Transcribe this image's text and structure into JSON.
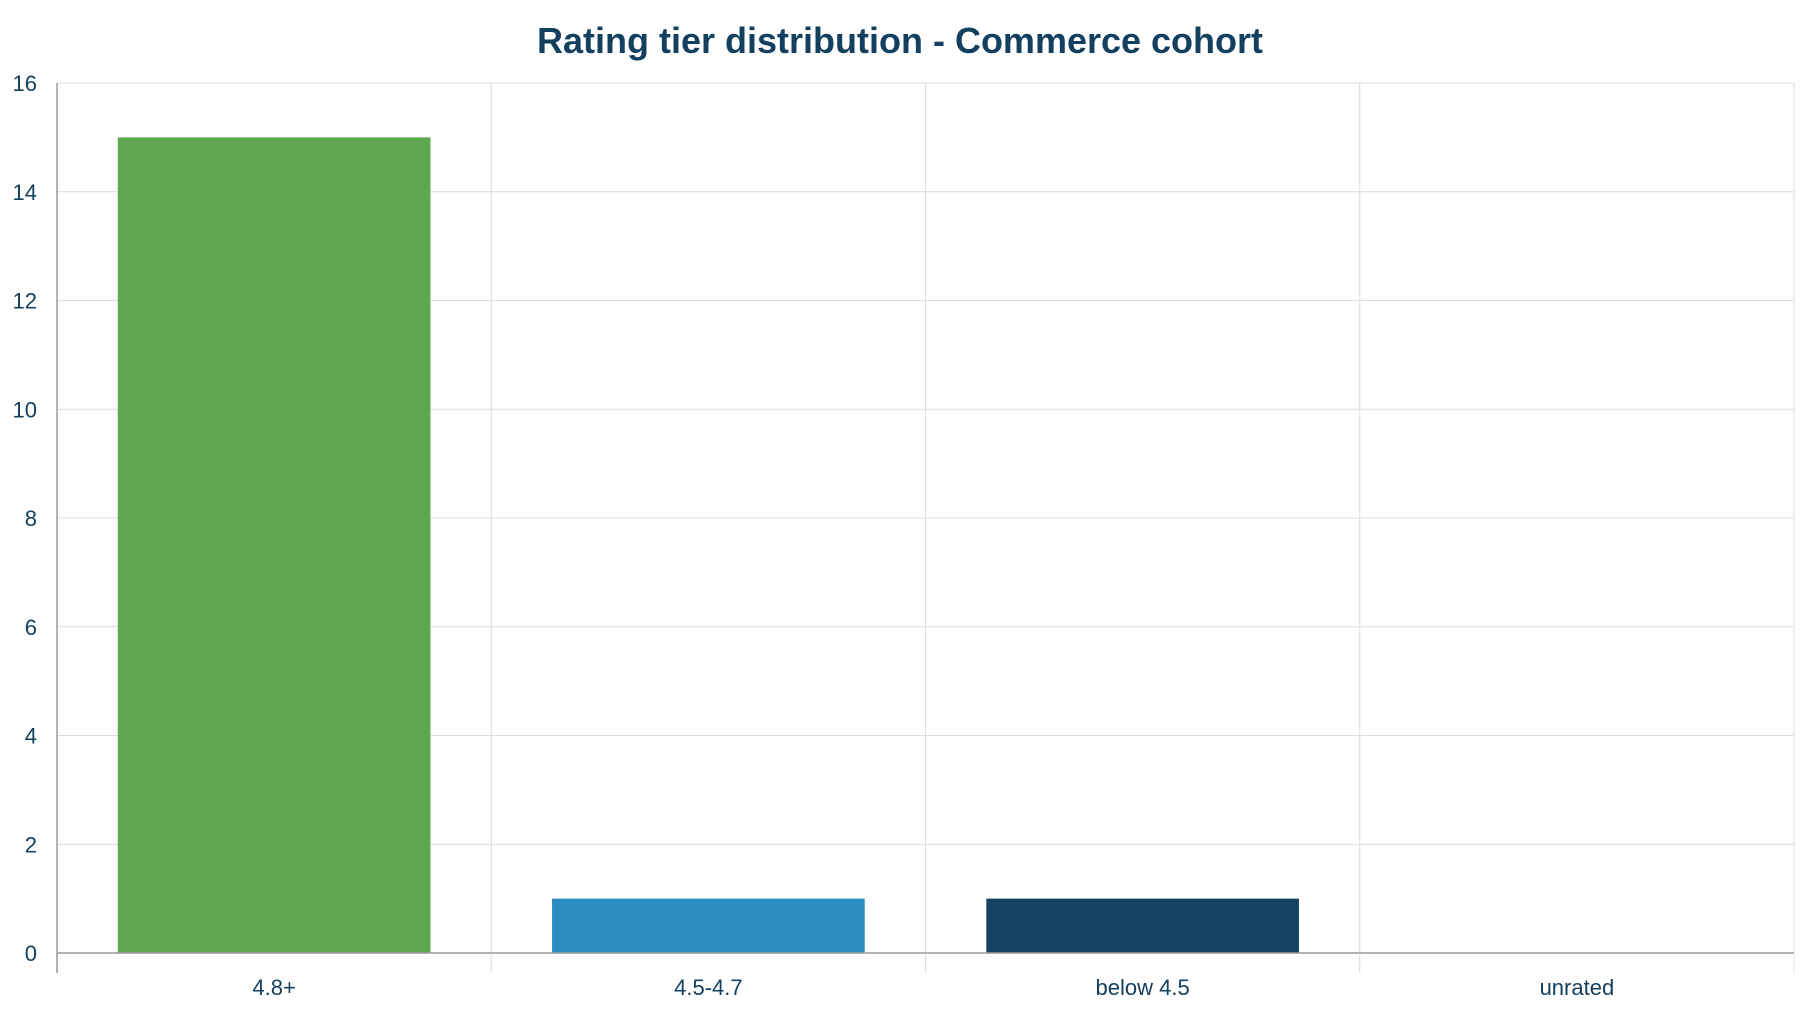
{
  "chart_data": {
    "type": "bar",
    "title": "Rating tier distribution - Commerce cohort",
    "xlabel": "",
    "ylabel": "",
    "categories": [
      "4.8+",
      "4.5-4.7",
      "below 4.5",
      "unrated"
    ],
    "values": [
      15,
      1,
      1,
      0
    ],
    "bar_colors": [
      "#5ea851",
      "#2b8cc2",
      "#134263",
      "#134263"
    ],
    "ylim": [
      0,
      16
    ],
    "yticks": [
      0,
      2,
      4,
      6,
      8,
      10,
      12,
      14,
      16
    ],
    "grid": true,
    "legend": "none"
  },
  "colors": {
    "title": "#14405f",
    "tick_text": "#14405f",
    "gridline": "#dcdcdc",
    "axis": "#999999"
  }
}
